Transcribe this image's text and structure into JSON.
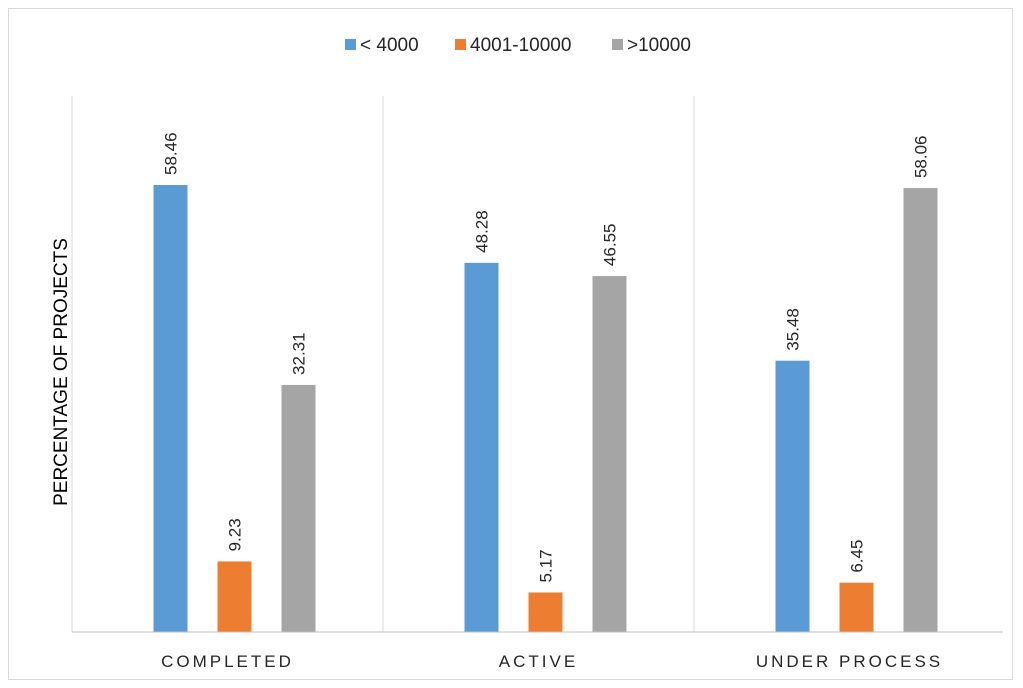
{
  "chart_data": {
    "type": "bar",
    "categories": [
      "COMPLETED",
      "ACTIVE",
      "UNDER PROCESS"
    ],
    "series": [
      {
        "name": "< 4000",
        "color": "#5b9bd5",
        "values": [
          58.46,
          48.28,
          35.48
        ]
      },
      {
        "name": "4001-10000",
        "color": "#ed7d31",
        "values": [
          9.23,
          5.17,
          6.45
        ]
      },
      {
        "name": ">10000",
        "color": "#a5a5a5",
        "values": [
          32.31,
          46.55,
          58.06
        ]
      }
    ],
    "ylabel": "PERCENTAGE OF PROJECTS",
    "xlabel": "",
    "ylim": [
      0,
      70
    ],
    "legend_position": "top",
    "grid": "vertical category separators",
    "data_labels": true,
    "data_label_rotation": "vertical"
  }
}
